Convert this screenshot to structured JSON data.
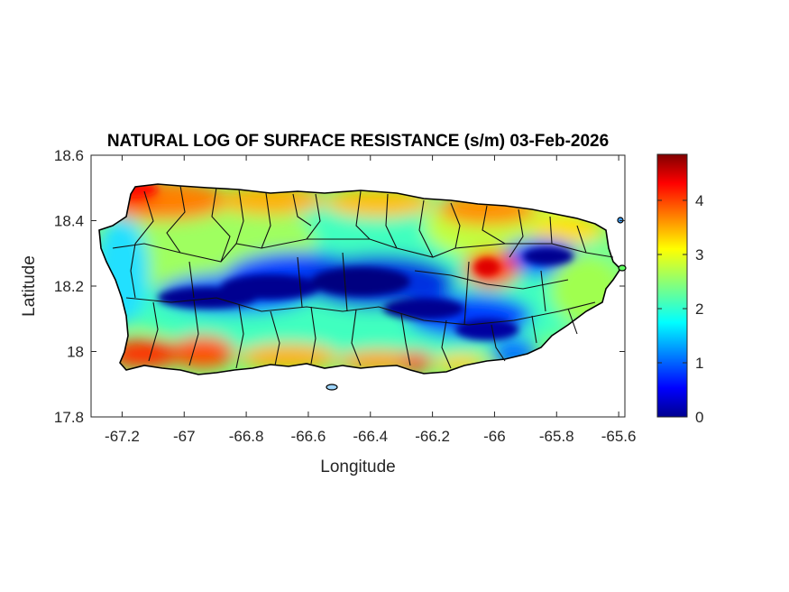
{
  "chart_data": {
    "type": "heatmap",
    "title": "NATURAL LOG OF SURFACE RESISTANCE (s/m) 03-Feb-2026",
    "xlabel": "Longitude",
    "ylabel": "Latitude",
    "xlim": [
      -67.3,
      -65.58
    ],
    "ylim": [
      17.8,
      18.6
    ],
    "xticks": [
      -67.2,
      -67,
      -66.8,
      -66.6,
      -66.4,
      -66.2,
      -66,
      -65.8,
      -65.6
    ],
    "xtick_labels": [
      "-67.2",
      "-67",
      "-66.8",
      "-66.6",
      "-66.4",
      "-66.2",
      "-66",
      "-65.8",
      "-65.6"
    ],
    "yticks": [
      17.8,
      18,
      18.2,
      18.4,
      18.6
    ],
    "ytick_labels": [
      "17.8",
      "18",
      "18.2",
      "18.4",
      "18.6"
    ],
    "colorbar": {
      "colormap": "jet",
      "range": [
        0,
        4.85
      ],
      "ticks": [
        0,
        1,
        2,
        3,
        4
      ],
      "tick_labels": [
        "0",
        "1",
        "2",
        "3",
        "4"
      ]
    },
    "grid": false
  }
}
